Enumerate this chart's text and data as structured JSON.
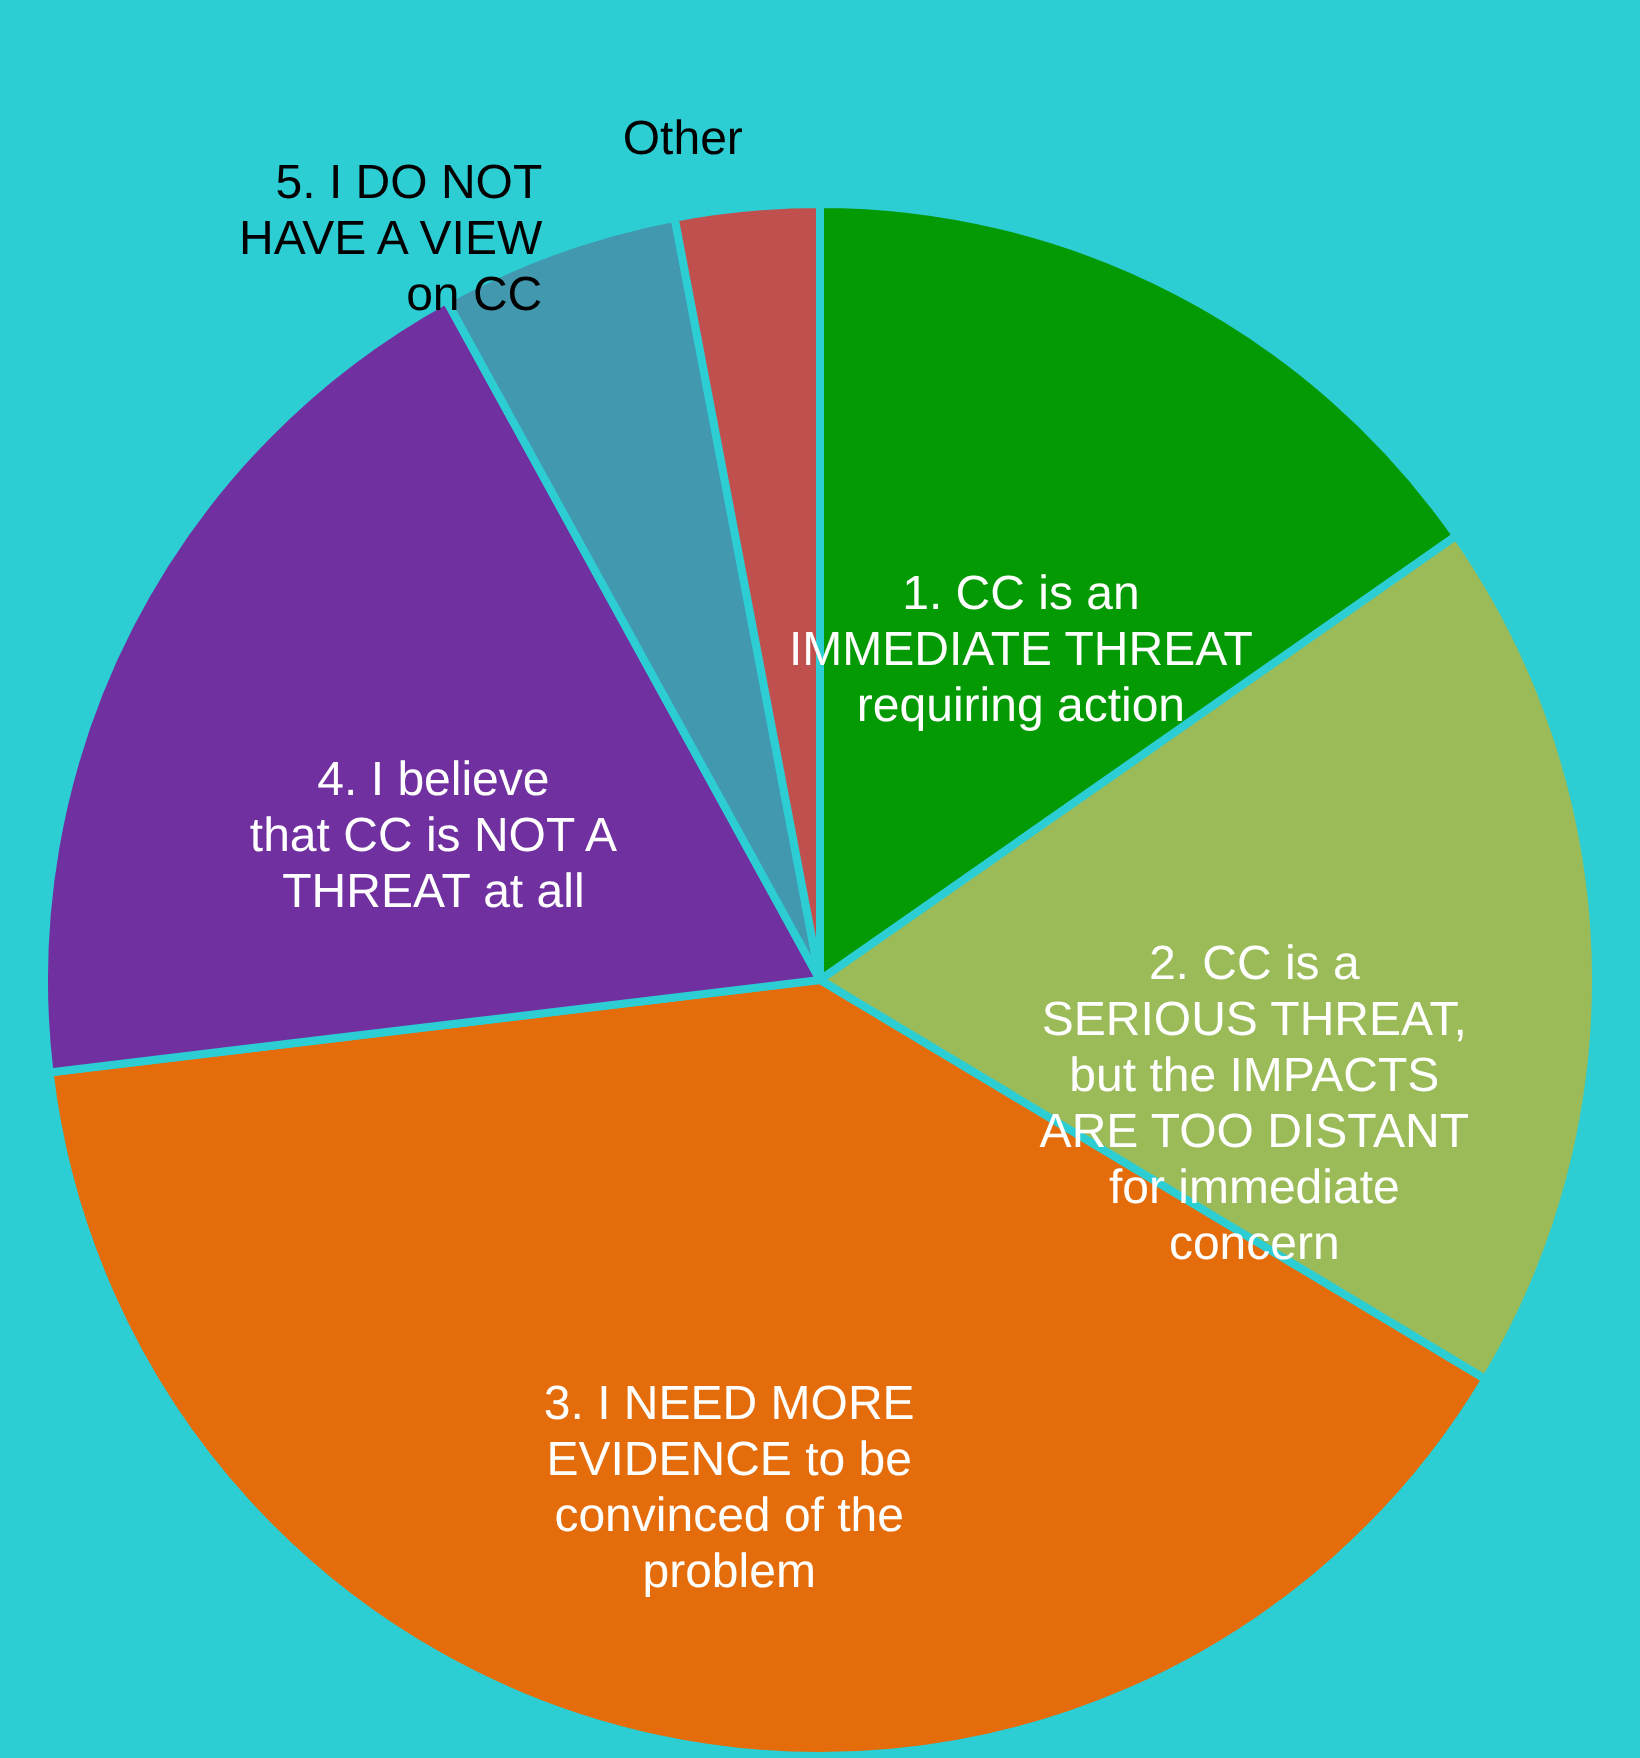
{
  "chart_data": {
    "type": "pie",
    "categories": [
      "1. CC is an IMMEDIATE THREAT requiring action",
      "2. CC is a SERIOUS THREAT, but the IMPACTS ARE TOO DISTANT for immediate concern",
      "3. I NEED MORE EVIDENCE to be convinced of the problem",
      "4. I believe that CC is NOT A THREAT at all",
      "5. I DO NOT HAVE A VIEW on CC",
      "Other"
    ],
    "values": [
      15.3,
      18.3,
      39.5,
      18.9,
      5,
      3
    ],
    "colors": [
      "#049a04",
      "#9bbb59",
      "#e46c0a",
      "#7030a0",
      "#4298af",
      "#c0504d"
    ]
  }
}
